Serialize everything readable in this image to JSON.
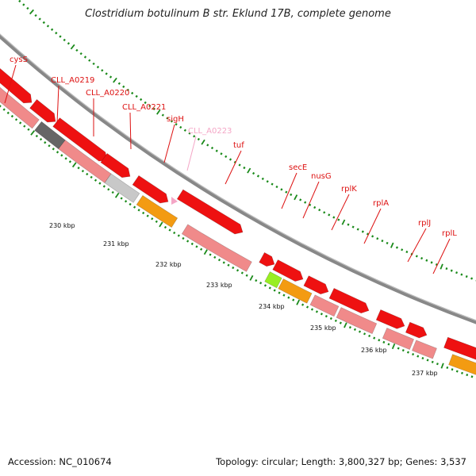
{
  "title": "Clostridium botulinum B str. Eklund 17B, complete genome",
  "colors": {
    "label": "#dd1111",
    "label_faded": "#f4a6c6",
    "tick_green": "#1a8a1a",
    "backbone": "#888888",
    "cds_red": "#ee1111",
    "pink": "#f08a8a",
    "gray_dark": "#666666",
    "gray_light": "#c8c8c8",
    "orange": "#f39b12",
    "lime": "#99ee22"
  },
  "gene_labels": [
    {
      "name": "cysS",
      "faded": false
    },
    {
      "name": "CLL_A0219",
      "faded": false
    },
    {
      "name": "CLL_A0220",
      "faded": false
    },
    {
      "name": "CLL_A0221",
      "faded": false
    },
    {
      "name": "sigH",
      "faded": false
    },
    {
      "name": "CLL_A0223",
      "faded": true
    },
    {
      "name": "tuf",
      "faded": false
    },
    {
      "name": "secE",
      "faded": false
    },
    {
      "name": "nusG",
      "faded": false
    },
    {
      "name": "rplK",
      "faded": false
    },
    {
      "name": "rplA",
      "faded": false
    },
    {
      "name": "rplJ",
      "faded": false
    },
    {
      "name": "rplL",
      "faded": false
    }
  ],
  "kbp_labels": [
    "230 kbp",
    "231 kbp",
    "232 kbp",
    "233 kbp",
    "234 kbp",
    "235 kbp",
    "236 kbp",
    "237 kbp"
  ],
  "footer": {
    "accession": "Accession: NC_010674",
    "topology": "Topology: circular; Length: 3,800,327 bp; Genes: 3,537"
  }
}
